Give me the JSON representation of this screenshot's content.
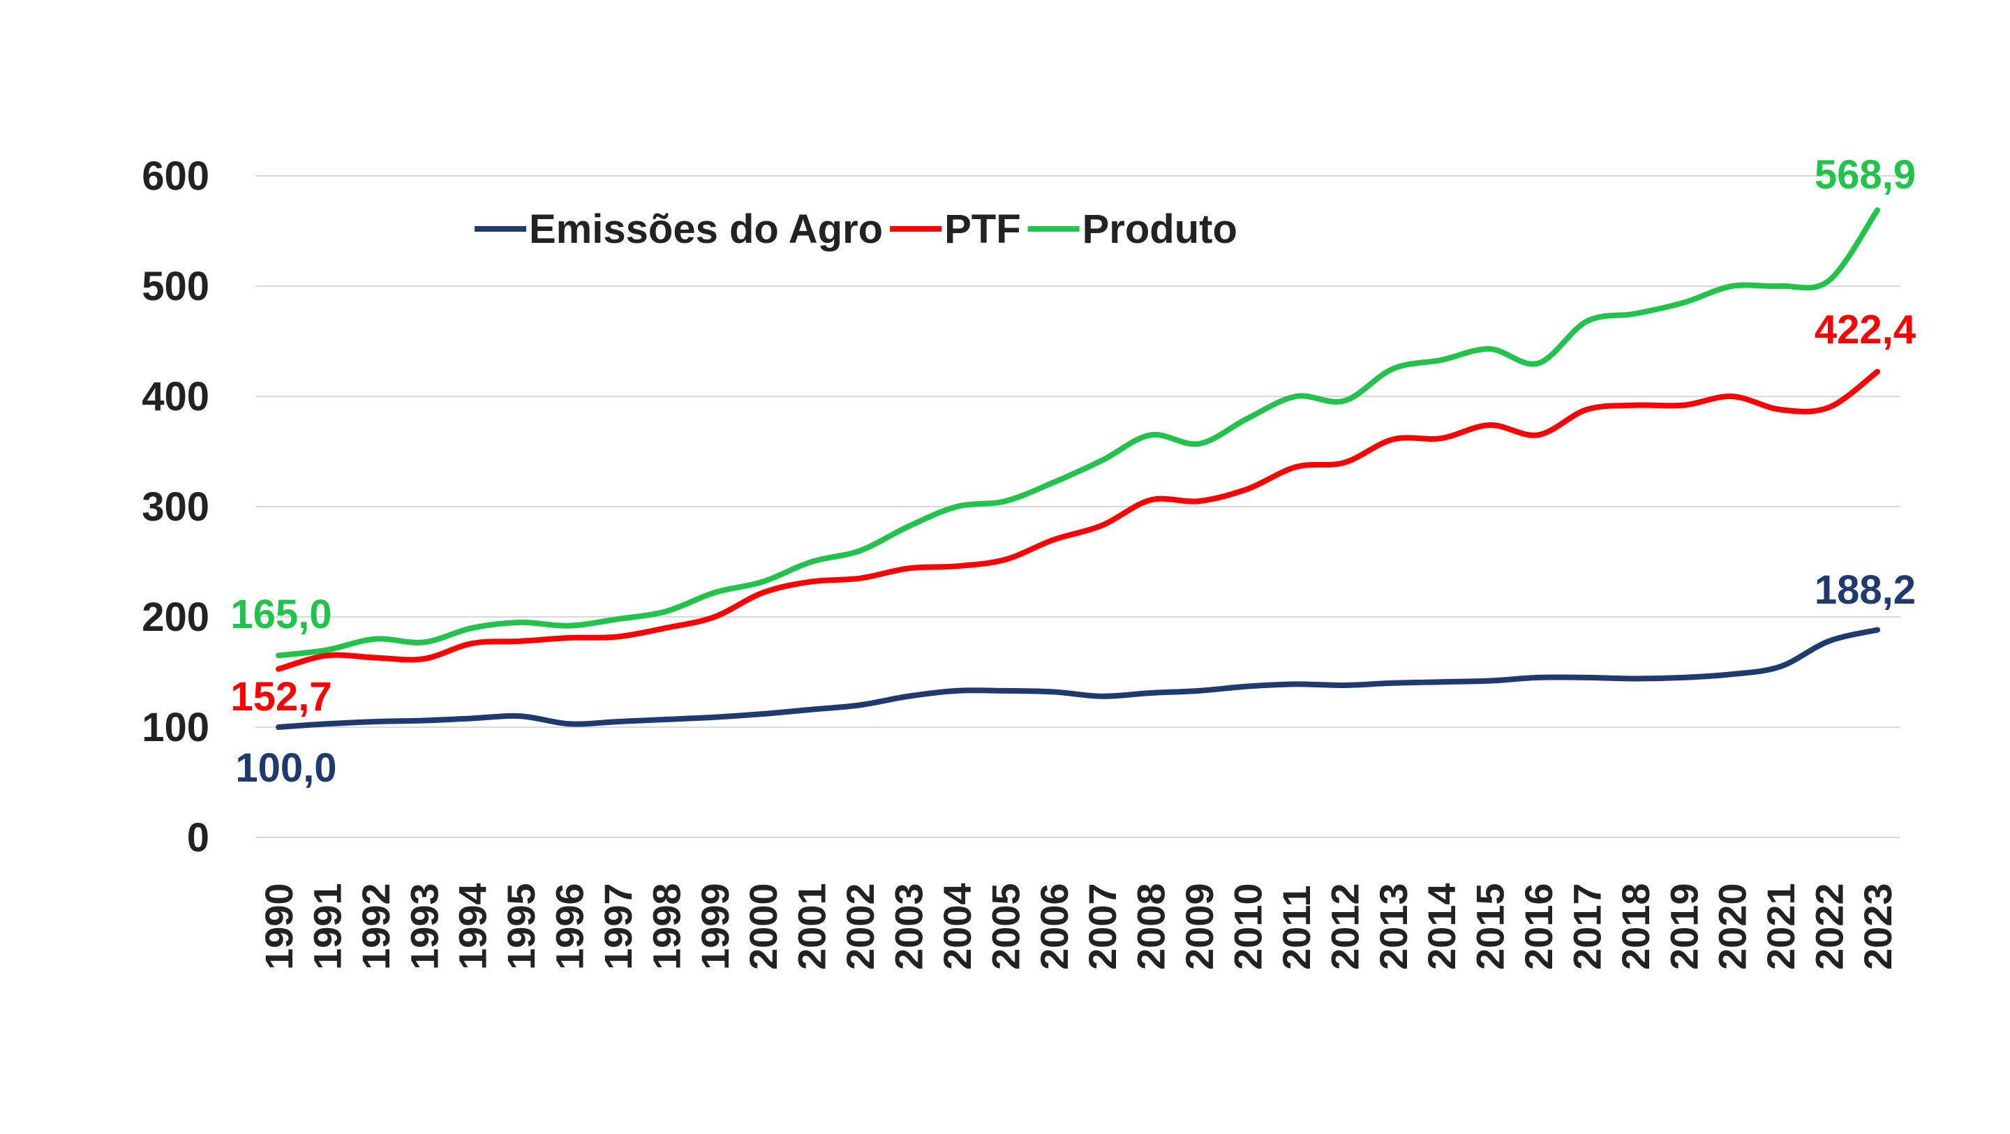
{
  "chart_data": {
    "type": "line",
    "title": "",
    "xlabel": "",
    "ylabel": "",
    "ylim": [
      0,
      600
    ],
    "yticks": [
      "0",
      "100",
      "200",
      "300",
      "400",
      "500",
      "600"
    ],
    "grid": true,
    "legend_placement": "top-left",
    "x": [
      "1990",
      "1991",
      "1992",
      "1993",
      "1994",
      "1995",
      "1996",
      "1997",
      "1998",
      "1999",
      "2000",
      "2001",
      "2002",
      "2003",
      "2004",
      "2005",
      "2006",
      "2007",
      "2008",
      "2009",
      "2010",
      "2011",
      "2012",
      "2013",
      "2014",
      "2015",
      "2016",
      "2017",
      "2018",
      "2019",
      "2020",
      "2021",
      "2022",
      "2023"
    ],
    "series": [
      {
        "name": "Emissões do Agro",
        "color": "#1f3a6e",
        "start_label": "100,0",
        "end_label": "188,2",
        "values": [
          100,
          103,
          105,
          106,
          108,
          110,
          103,
          105,
          107,
          109,
          112,
          116,
          120,
          128,
          133,
          133,
          132,
          128,
          131,
          133,
          137,
          139,
          138,
          140,
          141,
          142,
          145,
          145,
          144,
          145,
          148,
          155,
          178,
          188.2
        ]
      },
      {
        "name": "PTF",
        "color": "#ff0000",
        "start_label": "152,7",
        "end_label": "422,4",
        "values": [
          152.7,
          165,
          163,
          162,
          176,
          178,
          181,
          182,
          190,
          200,
          222,
          232,
          235,
          244,
          246,
          252,
          270,
          283,
          306,
          305,
          316,
          336,
          340,
          361,
          362,
          374,
          365,
          388,
          392,
          392,
          400,
          388,
          390,
          422.4
        ]
      },
      {
        "name": "Produto",
        "color": "#22c34a",
        "start_label": "165,0",
        "end_label": "568,9",
        "values": [
          165,
          170,
          180,
          177,
          190,
          195,
          192,
          198,
          205,
          222,
          232,
          250,
          260,
          282,
          300,
          305,
          322,
          342,
          365,
          357,
          380,
          400,
          396,
          425,
          433,
          443,
          430,
          468,
          475,
          485,
          500,
          500,
          505,
          568.9
        ]
      }
    ]
  }
}
